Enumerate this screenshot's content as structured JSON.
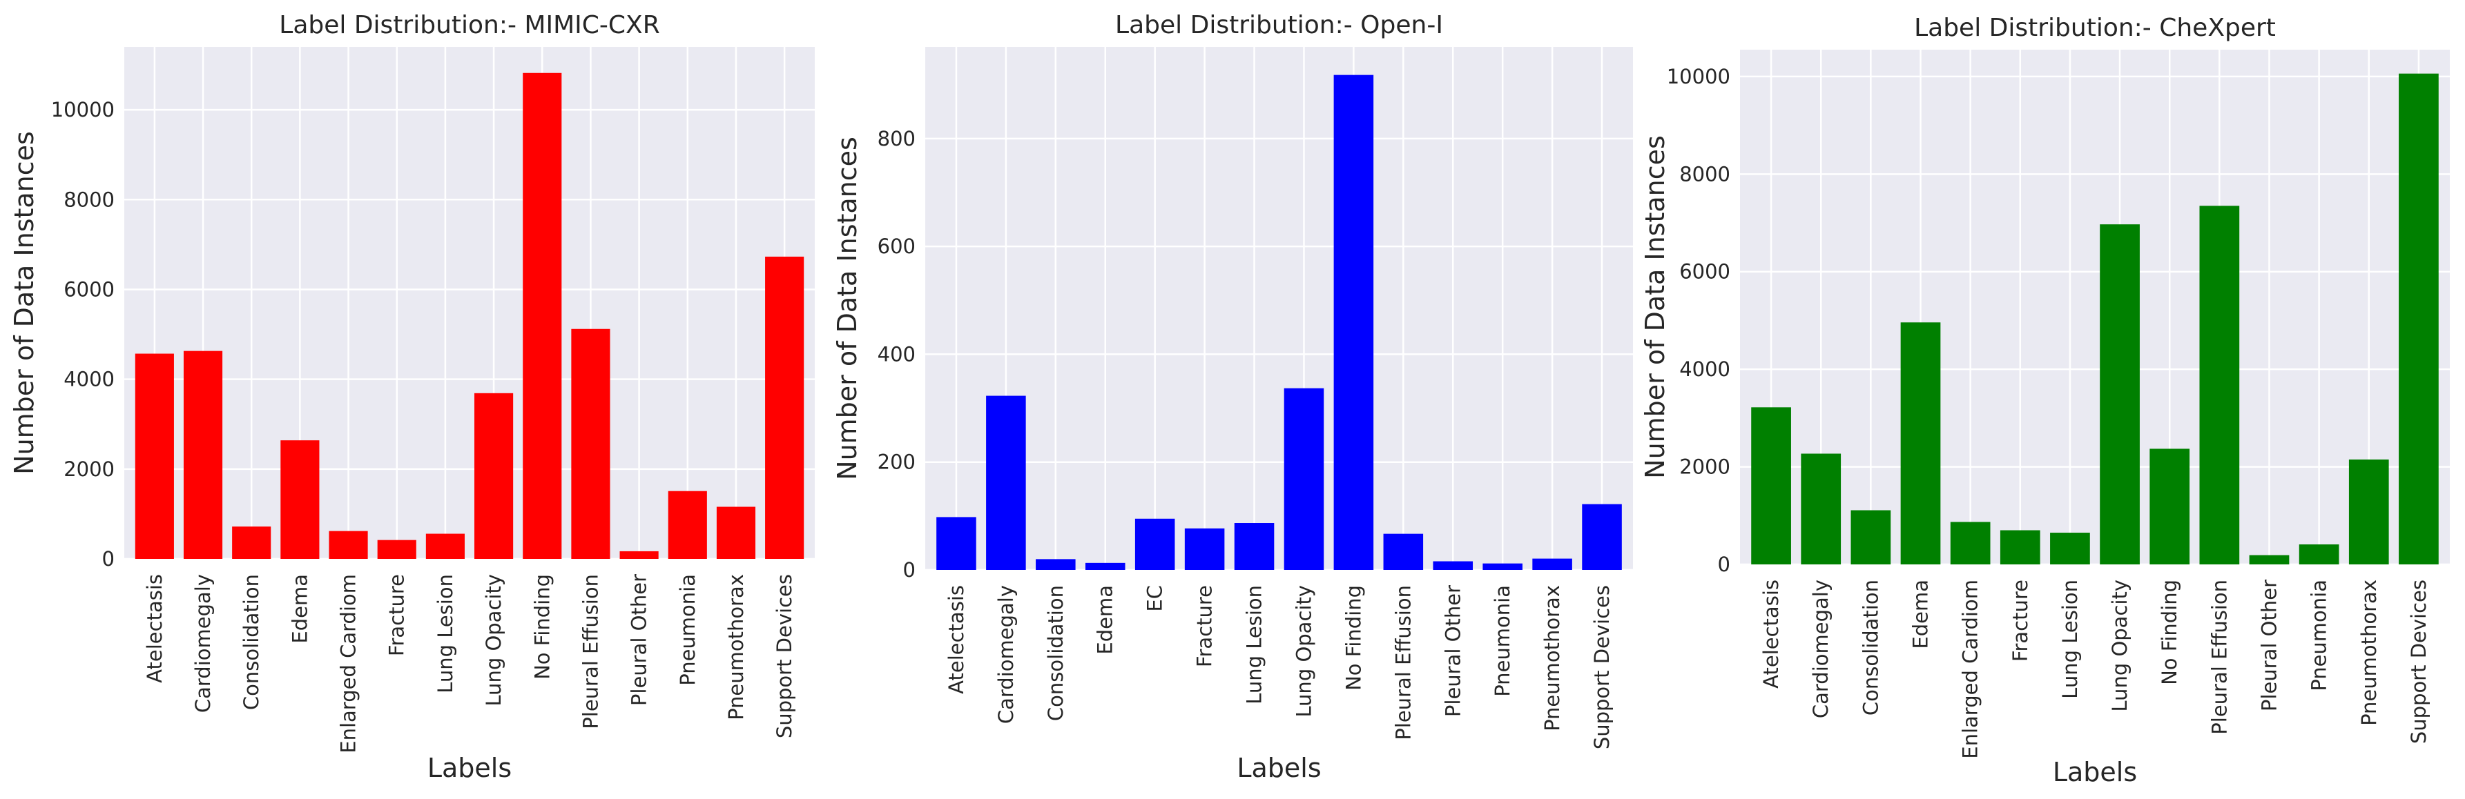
{
  "chart_data": [
    {
      "type": "bar",
      "title": "Label Distribution:- MIMIC-CXR",
      "xlabel": "Labels",
      "ylabel": "Number of Data Instances",
      "color": "#ff0000",
      "grid": true,
      "ylim": [
        0,
        11400
      ],
      "yticks": [
        0,
        2000,
        4000,
        6000,
        8000,
        10000
      ],
      "categories": [
        "Atelectasis",
        "Cardiomegaly",
        "Consolidation",
        "Edema",
        "Enlarged Cardiom",
        "Fracture",
        "Lung Lesion",
        "Lung Opacity",
        "No Finding",
        "Pleural Effusion",
        "Pleural Other",
        "Pneumonia",
        "Pneumothorax",
        "Support Devices"
      ],
      "values": [
        4570,
        4630,
        720,
        2640,
        620,
        420,
        560,
        3690,
        10820,
        5120,
        170,
        1510,
        1160,
        6730
      ]
    },
    {
      "type": "bar",
      "title": "Label Distribution:- Open-I",
      "xlabel": "Labels",
      "ylabel": "Number of Data Instances",
      "color": "#0000ff",
      "grid": true,
      "ylim": [
        0,
        970
      ],
      "yticks": [
        0,
        200,
        400,
        600,
        800
      ],
      "categories": [
        "Atelectasis",
        "Cardiomegaly",
        "Consolidation",
        "Edema",
        "EC",
        "Fracture",
        "Lung Lesion",
        "Lung Opacity",
        "No Finding",
        "Pleural Effusion",
        "Pleural Other",
        "Pneumonia",
        "Pneumothorax",
        "Support Devices"
      ],
      "values": [
        98,
        323,
        20,
        13,
        95,
        77,
        87,
        337,
        918,
        67,
        16,
        12,
        21,
        122
      ]
    },
    {
      "type": "bar",
      "title": "Label Distribution:- CheXpert",
      "xlabel": "Labels",
      "ylabel": "Number of Data Instances",
      "color": "#008000",
      "grid": true,
      "ylim": [
        0,
        10550
      ],
      "yticks": [
        0,
        2000,
        4000,
        6000,
        8000,
        10000
      ],
      "categories": [
        "Atelectasis",
        "Cardiomegaly",
        "Consolidation",
        "Edema",
        "Enlarged Cardiom",
        "Fracture",
        "Lung Lesion",
        "Lung Opacity",
        "No Finding",
        "Pleural Effusion",
        "Pleural Other",
        "Pneumonia",
        "Pneumothorax",
        "Support Devices"
      ],
      "values": [
        3220,
        2270,
        1110,
        4960,
        870,
        700,
        650,
        6970,
        2370,
        7350,
        190,
        410,
        2150,
        10060
      ]
    }
  ]
}
